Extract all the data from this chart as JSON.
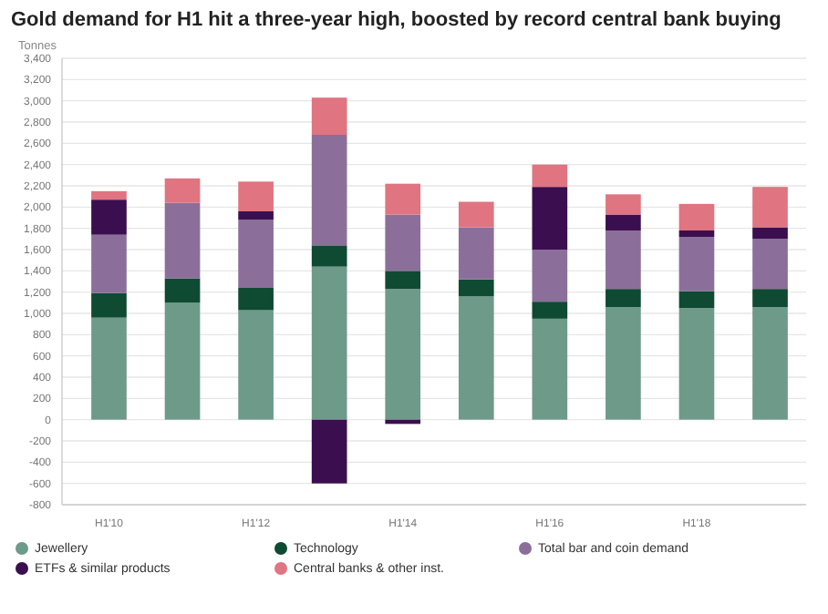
{
  "chart_data": {
    "type": "bar",
    "stacked": true,
    "title": "Gold demand for H1 hit a three-year high, boosted by record central bank buying",
    "ylabel": "Tonnes",
    "categories": [
      "H1'10",
      null,
      "H1'12",
      null,
      "H1'14",
      null,
      "H1'16",
      null,
      "H1'18",
      null
    ],
    "series": [
      {
        "name": "Jewellery",
        "color": "#6e9a89",
        "values": [
          960,
          1100,
          1030,
          1440,
          1230,
          1160,
          950,
          1060,
          1050,
          1060
        ]
      },
      {
        "name": "Technology",
        "color": "#0f4a33",
        "values": [
          230,
          230,
          210,
          200,
          170,
          160,
          160,
          170,
          160,
          170
        ]
      },
      {
        "name": "Total bar and coin demand",
        "color": "#8b6f9a",
        "values": [
          550,
          710,
          640,
          1040,
          530,
          490,
          490,
          550,
          510,
          470
        ]
      },
      {
        "name": "ETFs & similar products",
        "color": "#3b0f4f",
        "values": [
          330,
          0,
          80,
          -600,
          -40,
          0,
          590,
          150,
          60,
          110
        ]
      },
      {
        "name": "Central banks & other inst.",
        "color": "#e07480",
        "values": [
          80,
          230,
          280,
          350,
          290,
          240,
          210,
          190,
          250,
          380
        ]
      }
    ],
    "ylim": [
      -800,
      3400
    ],
    "yticks": [
      -800,
      -600,
      -400,
      -200,
      0,
      200,
      400,
      600,
      800,
      {
        "value": 1000,
        "label": "1,000"
      },
      {
        "value": 1200,
        "label": "1,200"
      },
      {
        "value": 1400,
        "label": "1,400"
      },
      {
        "value": 1600,
        "label": "1,600"
      },
      {
        "value": 1800,
        "label": "1,800"
      },
      {
        "value": 2000,
        "label": "2,000"
      },
      {
        "value": 2200,
        "label": "2,200"
      },
      {
        "value": 2400,
        "label": "2,400"
      },
      {
        "value": 2600,
        "label": "2,600"
      },
      {
        "value": 2800,
        "label": "2,800"
      },
      {
        "value": 3000,
        "label": "3,000"
      },
      {
        "value": 3200,
        "label": "3,200"
      },
      {
        "value": 3400,
        "label": "3,400"
      }
    ],
    "grid": "y",
    "legend": "bottom"
  }
}
